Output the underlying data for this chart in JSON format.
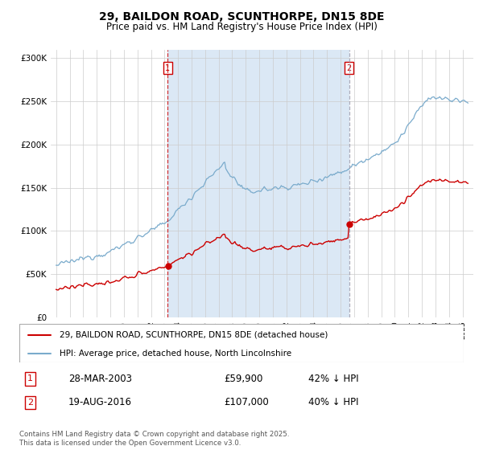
{
  "title": "29, BAILDON ROAD, SCUNTHORPE, DN15 8DE",
  "subtitle": "Price paid vs. HM Land Registry's House Price Index (HPI)",
  "background_color": "#e8f0f8",
  "plot_bg_color": "#ffffff",
  "shaded_region_color": "#dbe8f5",
  "line1_color": "#cc0000",
  "line2_color": "#7aabcc",
  "vline1_color": "#cc0000",
  "vline2_color": "#9999aa",
  "sale1_year": 2003.23,
  "sale1_price": 59900,
  "sale2_year": 2016.63,
  "sale2_price": 107000,
  "ylim": [
    0,
    310000
  ],
  "xlim_start": 1994.6,
  "xlim_end": 2025.8,
  "yticks": [
    0,
    50000,
    100000,
    150000,
    200000,
    250000,
    300000
  ],
  "ytick_labels": [
    "£0",
    "£50K",
    "£100K",
    "£150K",
    "£200K",
    "£250K",
    "£300K"
  ],
  "legend_label1": "29, BAILDON ROAD, SCUNTHORPE, DN15 8DE (detached house)",
  "legend_label2": "HPI: Average price, detached house, North Lincolnshire",
  "annotation1_date": "28-MAR-2003",
  "annotation1_price": "£59,900",
  "annotation1_hpi": "42% ↓ HPI",
  "annotation2_date": "19-AUG-2016",
  "annotation2_price": "£107,000",
  "annotation2_hpi": "40% ↓ HPI",
  "footer": "Contains HM Land Registry data © Crown copyright and database right 2025.\nThis data is licensed under the Open Government Licence v3.0."
}
